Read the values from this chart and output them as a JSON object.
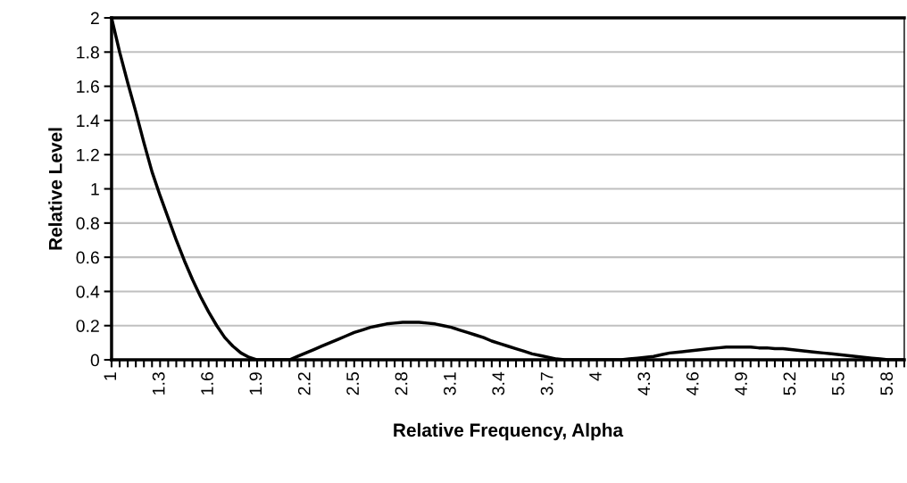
{
  "chart_data": {
    "type": "line",
    "xlabel": "Relative Frequency, Alpha",
    "ylabel": "Relative Level",
    "categories": [
      "1",
      null,
      null,
      null,
      null,
      null,
      "1.3",
      null,
      null,
      null,
      null,
      null,
      "1.6",
      null,
      null,
      null,
      null,
      null,
      "1.9",
      null,
      null,
      null,
      null,
      null,
      "2.2",
      null,
      null,
      null,
      null,
      null,
      "2.5",
      null,
      null,
      null,
      null,
      null,
      "2.8",
      null,
      null,
      null,
      null,
      null,
      "3.1",
      null,
      null,
      null,
      null,
      null,
      "3.4",
      null,
      null,
      null,
      null,
      null,
      "3.7",
      null,
      null,
      null,
      null,
      null,
      "4",
      null,
      null,
      null,
      null,
      null,
      "4.3",
      null,
      null,
      null,
      null,
      null,
      "4.6",
      null,
      null,
      null,
      null,
      null,
      "4.9",
      null,
      null,
      null,
      null,
      null,
      "5.2",
      null,
      null,
      null,
      null,
      null,
      "5.5",
      null,
      null,
      null,
      null,
      null,
      "5.8",
      null,
      null
    ],
    "series": [
      {
        "color": "#000000",
        "values": [
          2.0,
          1.8,
          1.62,
          1.45,
          1.27,
          1.1,
          0.96,
          0.83,
          0.7,
          0.58,
          0.47,
          0.37,
          0.28,
          0.2,
          0.13,
          0.08,
          0.04,
          0.015,
          0,
          0,
          0,
          0,
          0,
          0.02,
          0.04,
          0.06,
          0.08,
          0.1,
          0.12,
          0.14,
          0.16,
          0.175,
          0.19,
          0.2,
          0.21,
          0.215,
          0.22,
          0.22,
          0.22,
          0.215,
          0.21,
          0.2,
          0.19,
          0.175,
          0.16,
          0.145,
          0.13,
          0.11,
          0.095,
          0.08,
          0.065,
          0.05,
          0.035,
          0.025,
          0.015,
          0.005,
          0,
          0,
          0,
          0,
          0,
          0,
          0,
          0,
          0.005,
          0.01,
          0.015,
          0.02,
          0.03,
          0.04,
          0.045,
          0.05,
          0.055,
          0.06,
          0.065,
          0.07,
          0.075,
          0.075,
          0.075,
          0.075,
          0.07,
          0.07,
          0.065,
          0.065,
          0.06,
          0.055,
          0.05,
          0.045,
          0.04,
          0.035,
          0.03,
          0.025,
          0.02,
          0.015,
          0.01,
          0.005,
          0,
          0,
          0
        ]
      }
    ],
    "ylim": [
      0,
      2
    ],
    "yticks": [
      0,
      0.2,
      0.4,
      0.6,
      0.8,
      1,
      1.2,
      1.4,
      1.6,
      1.8,
      2
    ],
    "grid": "y",
    "marker": "none",
    "line_style": "solid"
  }
}
